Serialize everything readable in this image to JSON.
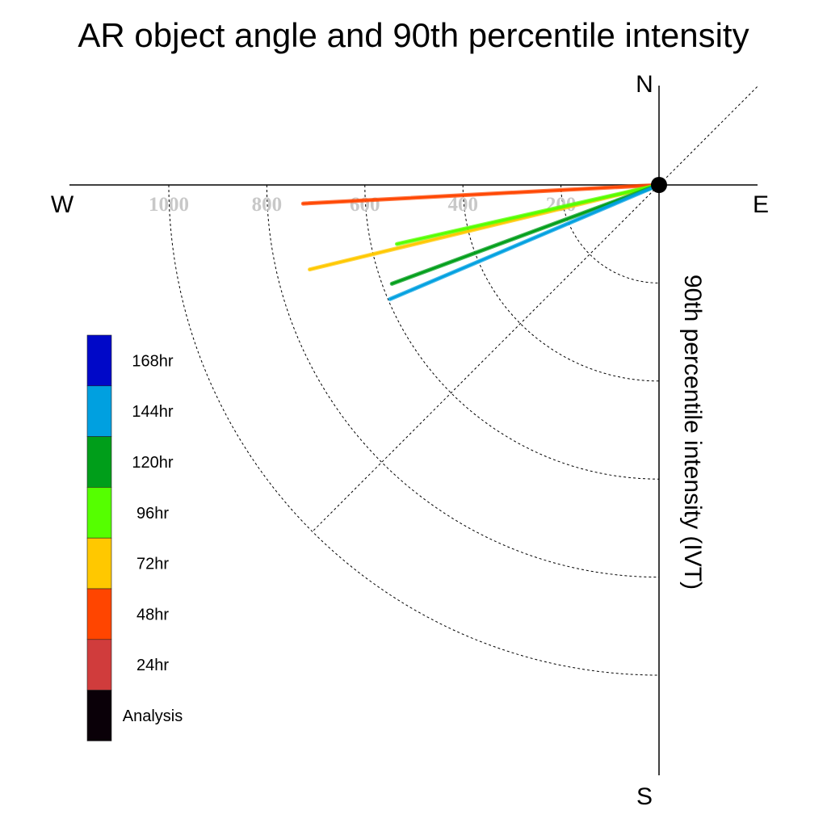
{
  "chart_data": {
    "type": "polar-line",
    "title": "AR object angle and 90th percentile intensity",
    "ylabel": "90th percentile intensity (IVT)",
    "compass": {
      "north": "N",
      "south": "S",
      "east": "E",
      "west": "W"
    },
    "radial_ticks": [
      "200",
      "400",
      "600",
      "800",
      "1000"
    ],
    "radial_tick_values": [
      200,
      400,
      600,
      800,
      1000
    ],
    "radial_max": 1000,
    "angle_convention": "degrees below west axis (toward south)",
    "series": [
      {
        "name": "48hr",
        "color": "#ff4500",
        "angle": 3.0,
        "intensity": 727
      },
      {
        "name": "72hr",
        "color": "#ffc800",
        "angle": 13.6,
        "intensity": 733
      },
      {
        "name": "96hr",
        "color": "#55ff00",
        "angle": 12.7,
        "intensity": 548
      },
      {
        "name": "120hr",
        "color": "#009e1a",
        "angle": 20.3,
        "intensity": 581
      },
      {
        "name": "144hr",
        "color": "#00a0e0",
        "angle": 23.0,
        "intensity": 596
      }
    ],
    "legend": [
      {
        "label": "168hr",
        "color": "#0008c8"
      },
      {
        "label": "144hr",
        "color": "#00a0e0"
      },
      {
        "label": "120hr",
        "color": "#009e1a"
      },
      {
        "label": "96hr",
        "color": "#55ff00"
      },
      {
        "label": "72hr",
        "color": "#ffc800"
      },
      {
        "label": "48hr",
        "color": "#ff4500"
      },
      {
        "label": "24hr",
        "color": "#d03c3c"
      },
      {
        "label": "Analysis",
        "color": "#0a0008"
      }
    ],
    "origin_marker_color": "#000000"
  }
}
